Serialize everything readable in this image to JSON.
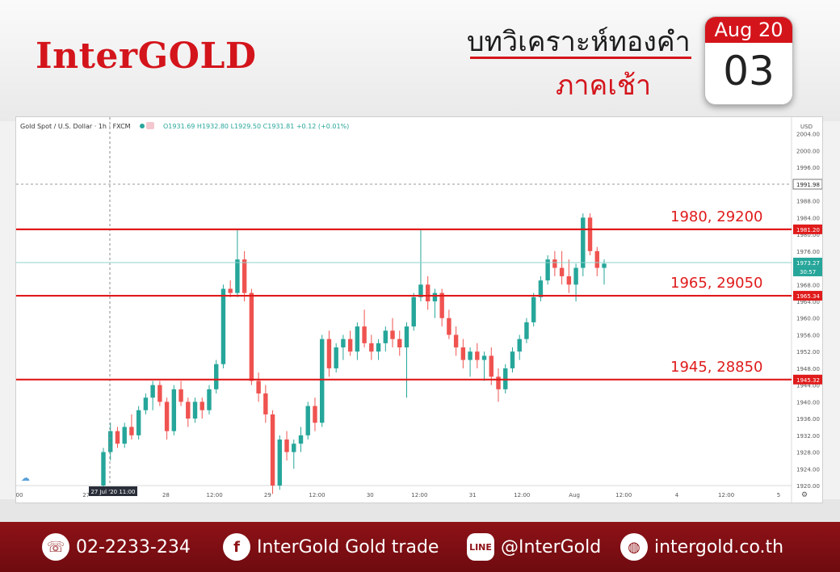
{
  "brand": "InterGOLD",
  "title_th": "บทวิเคราะห์ทองคำ",
  "subtitle_th": "ภาคเช้า",
  "calendar": {
    "month_year": "Aug 20",
    "day": "03"
  },
  "chart_header": {
    "symbol": "Gold Spot / U.S. Dollar · 1h · FXCM",
    "ohlc": "O1931.69 H1932.80 L1929.50 C1931.81 +0.12 (+0.01%)",
    "currency": "USD"
  },
  "chart_data": {
    "type": "candlestick",
    "ylim": [
      1920,
      2008
    ],
    "y_ticks": [
      2004,
      2000,
      1996,
      1992,
      1988,
      1984,
      1980,
      1976,
      1972,
      1968,
      1964,
      1960,
      1956,
      1952,
      1948,
      1944,
      1940,
      1936,
      1932,
      1928,
      1924,
      1920
    ],
    "x_ticks": [
      {
        "label": "00",
        "pos": 0.0
      },
      {
        "label": "27",
        "pos": 0.088
      },
      {
        "label": "28",
        "pos": 0.193
      },
      {
        "label": "12:00",
        "pos": 0.257
      },
      {
        "label": "29",
        "pos": 0.327
      },
      {
        "label": "12:00",
        "pos": 0.392
      },
      {
        "label": "30",
        "pos": 0.462
      },
      {
        "label": "12:00",
        "pos": 0.527
      },
      {
        "label": "31",
        "pos": 0.597
      },
      {
        "label": "12:00",
        "pos": 0.662
      },
      {
        "label": "Aug",
        "pos": 0.731
      },
      {
        "label": "12:00",
        "pos": 0.796
      },
      {
        "label": "4",
        "pos": 0.866
      },
      {
        "label": "12:00",
        "pos": 0.931
      },
      {
        "label": "5",
        "pos": 1.0
      }
    ],
    "crosshair_label": "27 Jul '20   11:00",
    "price_marks": [
      {
        "value": 1991.98,
        "label": "1991.98",
        "kind": "dashed"
      },
      {
        "value": 1981.2,
        "label": "1981.20",
        "kind": "level"
      },
      {
        "value": 1973.27,
        "label": "1973.27",
        "kind": "last"
      },
      {
        "value": 1965.34,
        "label": "1965.34",
        "kind": "level"
      },
      {
        "value": 1945.32,
        "label": "1945.32",
        "kind": "level"
      }
    ],
    "countdown": "30:57",
    "levels": [
      {
        "value": 1981.2,
        "label": "1980, 29200"
      },
      {
        "value": 1965.34,
        "label": "1965, 29050"
      },
      {
        "value": 1945.32,
        "label": "1945, 28850"
      }
    ],
    "candles": [
      [
        1920,
        1929,
        1918,
        1928
      ],
      [
        1928,
        1935,
        1926,
        1933
      ],
      [
        1933,
        1934,
        1929,
        1930
      ],
      [
        1930,
        1935,
        1929,
        1934
      ],
      [
        1934,
        1937,
        1931,
        1932
      ],
      [
        1932,
        1939,
        1931,
        1938
      ],
      [
        1938,
        1942,
        1937,
        1941
      ],
      [
        1941,
        1945,
        1938,
        1944
      ],
      [
        1944,
        1945,
        1939,
        1940
      ],
      [
        1940,
        1941,
        1931,
        1933
      ],
      [
        1933,
        1944,
        1932,
        1943
      ],
      [
        1943,
        1945,
        1939,
        1940
      ],
      [
        1940,
        1941,
        1934,
        1936
      ],
      [
        1936,
        1941,
        1935,
        1940
      ],
      [
        1940,
        1941,
        1936,
        1938
      ],
      [
        1938,
        1944,
        1937,
        1943
      ],
      [
        1943,
        1950,
        1942,
        1949
      ],
      [
        1949,
        1968,
        1948,
        1967
      ],
      [
        1967,
        1969,
        1965,
        1966
      ],
      [
        1966,
        1981,
        1965,
        1974
      ],
      [
        1974,
        1976,
        1964,
        1966
      ],
      [
        1966,
        1967,
        1944,
        1945
      ],
      [
        1945,
        1947,
        1940,
        1942
      ],
      [
        1942,
        1944,
        1935,
        1937
      ],
      [
        1937,
        1938,
        1918,
        1920
      ],
      [
        1920,
        1932,
        1919,
        1931
      ],
      [
        1931,
        1933,
        1926,
        1928
      ],
      [
        1928,
        1931,
        1924,
        1930
      ],
      [
        1930,
        1934,
        1928,
        1932
      ],
      [
        1932,
        1940,
        1931,
        1939
      ],
      [
        1939,
        1941,
        1933,
        1935
      ],
      [
        1935,
        1956,
        1934,
        1955
      ],
      [
        1955,
        1957,
        1946,
        1948
      ],
      [
        1948,
        1954,
        1947,
        1953
      ],
      [
        1953,
        1956,
        1950,
        1955
      ],
      [
        1955,
        1957,
        1951,
        1952
      ],
      [
        1952,
        1959,
        1950,
        1958
      ],
      [
        1958,
        1962,
        1953,
        1954
      ],
      [
        1954,
        1956,
        1950,
        1952
      ],
      [
        1952,
        1955,
        1950,
        1954
      ],
      [
        1954,
        1958,
        1952,
        1957
      ],
      [
        1957,
        1960,
        1953,
        1955
      ],
      [
        1955,
        1957,
        1951,
        1953
      ],
      [
        1953,
        1959,
        1941,
        1958
      ],
      [
        1958,
        1966,
        1957,
        1965
      ],
      [
        1965,
        1981,
        1964,
        1968
      ],
      [
        1968,
        1970,
        1962,
        1964
      ],
      [
        1964,
        1967,
        1960,
        1966
      ],
      [
        1966,
        1967,
        1958,
        1960
      ],
      [
        1960,
        1962,
        1955,
        1956
      ],
      [
        1956,
        1958,
        1951,
        1953
      ],
      [
        1953,
        1955,
        1948,
        1950
      ],
      [
        1950,
        1953,
        1946,
        1952
      ],
      [
        1952,
        1954,
        1948,
        1950
      ],
      [
        1950,
        1952,
        1945,
        1951
      ],
      [
        1951,
        1953,
        1944,
        1946
      ],
      [
        1946,
        1948,
        1940,
        1943
      ],
      [
        1943,
        1949,
        1942,
        1948
      ],
      [
        1948,
        1953,
        1947,
        1952
      ],
      [
        1952,
        1956,
        1950,
        1955
      ],
      [
        1955,
        1960,
        1954,
        1959
      ],
      [
        1959,
        1966,
        1958,
        1965
      ],
      [
        1965,
        1970,
        1964,
        1969
      ],
      [
        1969,
        1975,
        1968,
        1974
      ],
      [
        1974,
        1976,
        1970,
        1972
      ],
      [
        1972,
        1976,
        1968,
        1970
      ],
      [
        1970,
        1974,
        1966,
        1968
      ],
      [
        1968,
        1973,
        1964,
        1972
      ],
      [
        1972,
        1985,
        1970,
        1984
      ],
      [
        1984,
        1985,
        1975,
        1976
      ],
      [
        1976,
        1977,
        1970,
        1972
      ],
      [
        1972,
        1974,
        1968,
        1973
      ]
    ]
  },
  "footer": {
    "phone": "02-2233-234",
    "facebook": "InterGold Gold trade",
    "line": "@InterGold",
    "website": "intergold.co.th"
  }
}
